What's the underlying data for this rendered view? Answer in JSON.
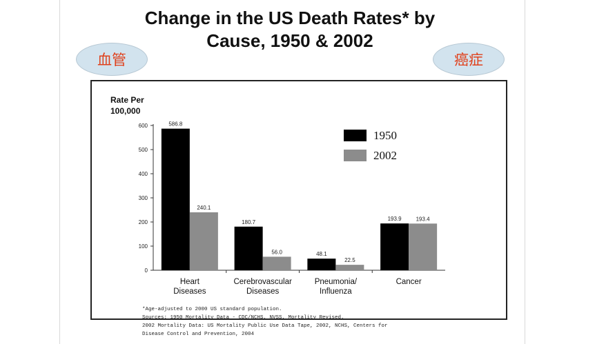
{
  "slide": {
    "title_line1": "Change in the US Death Rates* by",
    "title_line2": "Cause, 1950 & 2002",
    "bubble_left": "血管",
    "bubble_right": "癌症"
  },
  "chart_data": {
    "type": "bar",
    "ylabel_line1": "Rate Per",
    "ylabel_line2": "100,000",
    "ylim": [
      0,
      600
    ],
    "yticks": [
      0,
      100,
      200,
      300,
      400,
      500,
      600
    ],
    "categories": [
      [
        "Heart",
        "Diseases"
      ],
      [
        "Cerebrovascular",
        "Diseases"
      ],
      [
        "Pneumonia/",
        "Influenza"
      ],
      [
        "Cancer"
      ]
    ],
    "series": [
      {
        "name": "1950",
        "color": "#000000",
        "values": [
          586.8,
          180.7,
          48.1,
          193.9
        ],
        "labels": [
          "586.8",
          "180.7",
          "48.1",
          "193.9"
        ]
      },
      {
        "name": "2002",
        "color": "#8c8c8c",
        "values": [
          240.1,
          56.0,
          22.5,
          193.4
        ],
        "labels": [
          "240.1",
          "56.0",
          "22.5",
          "193.4"
        ]
      }
    ],
    "legend_position": "top-right",
    "footnotes": [
      "*Age-adjusted to 2000 US standard population.",
      "Sources: 1950 Mortality Data - CDC/NCHS, NVSS, Mortality Revised.",
      "2002 Mortality Data: US Mortality Public Use Data Tape, 2002, NCHS, Centers for",
      "Disease Control and Prevention, 2004"
    ]
  }
}
